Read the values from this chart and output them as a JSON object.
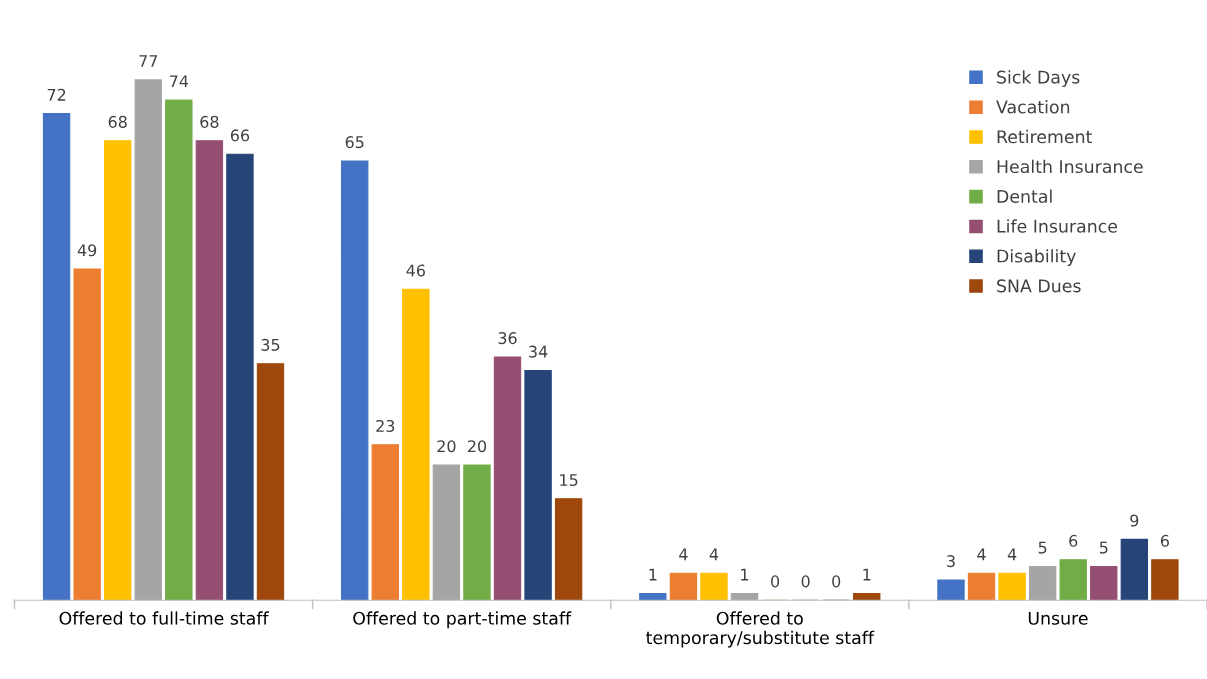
{
  "chart_data": {
    "type": "bar",
    "categories": [
      "Offered to full-time staff",
      "Offered to part-time staff",
      "Offered to\ntemporary/substitute staff",
      "Unsure"
    ],
    "series": [
      {
        "name": "Sick Days",
        "color": "#4472c4",
        "values": [
          72,
          65,
          1,
          3
        ]
      },
      {
        "name": "Vacation",
        "color": "#ed7d31",
        "values": [
          49,
          23,
          4,
          4
        ]
      },
      {
        "name": "Retirement",
        "color": "#ffc000",
        "values": [
          68,
          46,
          4,
          4
        ]
      },
      {
        "name": "Health Insurance",
        "color": "#a5a5a5",
        "values": [
          77,
          20,
          1,
          5
        ]
      },
      {
        "name": "Dental",
        "color": "#70ad47",
        "values": [
          74,
          20,
          0,
          6
        ]
      },
      {
        "name": "Life Insurance",
        "color": "#954f72",
        "values": [
          68,
          36,
          0,
          5
        ]
      },
      {
        "name": "Disability",
        "color": "#264478",
        "values": [
          66,
          34,
          0,
          9
        ]
      },
      {
        "name": "SNA Dues",
        "color": "#9e480e",
        "values": [
          35,
          15,
          1,
          6
        ]
      }
    ],
    "data_labels": true,
    "legend": "top right",
    "grid": false
  }
}
